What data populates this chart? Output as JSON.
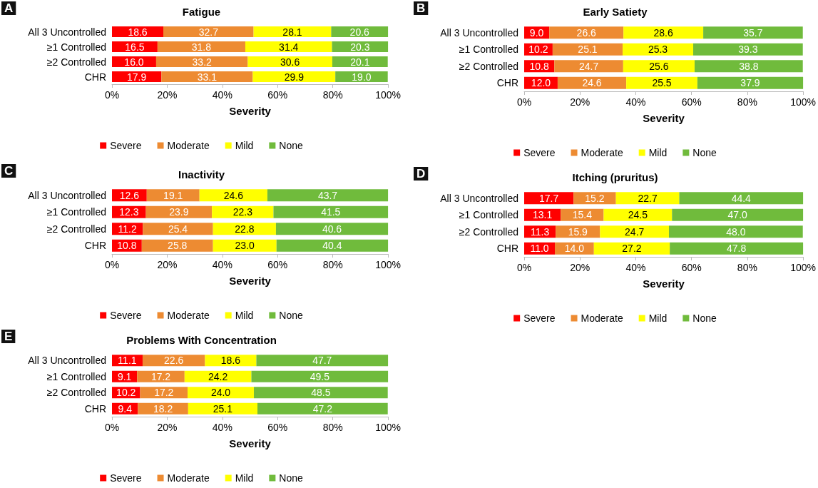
{
  "chart_data": [
    {
      "type": "bar",
      "orientation": "horizontal",
      "stacked": true,
      "title": "Fatigue",
      "annotations": [
        "A"
      ],
      "xlabel": "Severity",
      "categories": [
        "All 3 Uncontrolled",
        "≥1 Controlled",
        "≥2 Controlled",
        "CHR"
      ],
      "series": [
        {
          "name": "Severe",
          "color": "#ff0000",
          "values": [
            18.6,
            16.5,
            16.0,
            17.9
          ],
          "value_labels": [
            "18.6",
            "16.5",
            "16.0",
            "17.9"
          ]
        },
        {
          "name": "Moderate",
          "color": "#ed8b32",
          "values": [
            32.7,
            31.8,
            33.2,
            33.1
          ],
          "value_labels": [
            "32.7",
            "31.8",
            "33.2",
            "33.1"
          ]
        },
        {
          "name": "Mild",
          "color": "#ffff00",
          "values": [
            28.1,
            31.4,
            30.6,
            29.9
          ],
          "value_labels": [
            "28.1",
            "31.4",
            "30.6",
            "29.9"
          ]
        },
        {
          "name": "None",
          "color": "#70bb3c",
          "values": [
            20.6,
            20.3,
            20.1,
            19.0
          ],
          "value_labels": [
            "20.6",
            "20.3",
            "20.1",
            "19.0"
          ]
        }
      ],
      "xlim": [
        0,
        100
      ],
      "xticks": [
        {
          "value": 0,
          "label": "0%"
        },
        {
          "value": 20,
          "label": "20%"
        },
        {
          "value": 40,
          "label": "40%"
        },
        {
          "value": 60,
          "label": "60%"
        },
        {
          "value": 80,
          "label": "80%"
        },
        {
          "value": 100,
          "label": "100%"
        }
      ],
      "legend": "bottom",
      "grid": false
    },
    {
      "type": "bar",
      "orientation": "horizontal",
      "stacked": true,
      "title": "Early Satiety",
      "annotations": [
        "B"
      ],
      "xlabel": "Severity",
      "categories": [
        "All 3 Uncontrolled",
        "≥1 Controlled",
        "≥2 Controlled",
        "CHR"
      ],
      "series": [
        {
          "name": "Severe",
          "color": "#ff0000",
          "values": [
            9.0,
            10.2,
            10.8,
            12.0
          ],
          "value_labels": [
            "9.0",
            "10.2",
            "10.8",
            "12.0"
          ]
        },
        {
          "name": "Moderate",
          "color": "#ed8b32",
          "values": [
            26.6,
            25.1,
            24.7,
            24.6
          ],
          "value_labels": [
            "26.6",
            "25.1",
            "24.7",
            "24.6"
          ]
        },
        {
          "name": "Mild",
          "color": "#ffff00",
          "values": [
            28.6,
            25.3,
            25.6,
            25.5
          ],
          "value_labels": [
            "28.6",
            "25.3",
            "25.6",
            "25.5"
          ]
        },
        {
          "name": "None",
          "color": "#70bb3c",
          "values": [
            35.7,
            39.3,
            38.8,
            37.9
          ],
          "value_labels": [
            "35.7",
            "39.3",
            "38.8",
            "37.9"
          ]
        }
      ],
      "xlim": [
        0,
        100
      ],
      "xticks": [
        {
          "value": 0,
          "label": "0%"
        },
        {
          "value": 20,
          "label": "20%"
        },
        {
          "value": 40,
          "label": "40%"
        },
        {
          "value": 60,
          "label": "60%"
        },
        {
          "value": 80,
          "label": "80%"
        },
        {
          "value": 100,
          "label": "100%"
        }
      ],
      "legend": "bottom",
      "grid": false
    },
    {
      "type": "bar",
      "orientation": "horizontal",
      "stacked": true,
      "title": "Inactivity",
      "annotations": [
        "C"
      ],
      "xlabel": "Severity",
      "categories": [
        "All 3 Uncontrolled",
        "≥1 Controlled",
        "≥2 Controlled",
        "CHR"
      ],
      "series": [
        {
          "name": "Severe",
          "color": "#ff0000",
          "values": [
            12.6,
            12.3,
            11.2,
            10.8
          ],
          "value_labels": [
            "12.6",
            "12.3",
            "11.2",
            "10.8"
          ]
        },
        {
          "name": "Moderate",
          "color": "#ed8b32",
          "values": [
            19.1,
            23.9,
            25.4,
            25.8
          ],
          "value_labels": [
            "19.1",
            "23.9",
            "25.4",
            "25.8"
          ]
        },
        {
          "name": "Mild",
          "color": "#ffff00",
          "values": [
            24.6,
            22.3,
            22.8,
            23.0
          ],
          "value_labels": [
            "24.6",
            "22.3",
            "22.8",
            "23.0"
          ]
        },
        {
          "name": "None",
          "color": "#70bb3c",
          "values": [
            43.7,
            41.5,
            40.6,
            40.4
          ],
          "value_labels": [
            "43.7",
            "41.5",
            "40.6",
            "40.4"
          ]
        }
      ],
      "xlim": [
        0,
        100
      ],
      "xticks": [
        {
          "value": 0,
          "label": "0%"
        },
        {
          "value": 20,
          "label": "20%"
        },
        {
          "value": 40,
          "label": "40%"
        },
        {
          "value": 60,
          "label": "60%"
        },
        {
          "value": 80,
          "label": "80%"
        },
        {
          "value": 100,
          "label": "100%"
        }
      ],
      "legend": "bottom",
      "grid": false
    },
    {
      "type": "bar",
      "orientation": "horizontal",
      "stacked": true,
      "title": "Itching (pruritus)",
      "annotations": [
        "D"
      ],
      "xlabel": "Severity",
      "categories": [
        "All 3 Uncontrolled",
        "≥1 Controlled",
        "≥2 Controlled",
        "CHR"
      ],
      "series": [
        {
          "name": "Severe",
          "color": "#ff0000",
          "values": [
            17.7,
            13.1,
            11.3,
            11.0
          ],
          "value_labels": [
            "17.7",
            "13.1",
            "11.3",
            "11.0"
          ]
        },
        {
          "name": "Moderate",
          "color": "#ed8b32",
          "values": [
            15.2,
            15.4,
            15.9,
            14.0
          ],
          "value_labels": [
            "15.2",
            "15.4",
            "15.9",
            "14.0"
          ]
        },
        {
          "name": "Mild",
          "color": "#ffff00",
          "values": [
            22.7,
            24.5,
            24.7,
            27.2
          ],
          "value_labels": [
            "22.7",
            "24.5",
            "24.7",
            "27.2"
          ]
        },
        {
          "name": "None",
          "color": "#70bb3c",
          "values": [
            44.4,
            47.0,
            48.0,
            47.8
          ],
          "value_labels": [
            "44.4",
            "47.0",
            "48.0",
            "47.8"
          ]
        }
      ],
      "xlim": [
        0,
        100
      ],
      "xticks": [
        {
          "value": 0,
          "label": "0%"
        },
        {
          "value": 20,
          "label": "20%"
        },
        {
          "value": 40,
          "label": "40%"
        },
        {
          "value": 60,
          "label": "60%"
        },
        {
          "value": 80,
          "label": "80%"
        },
        {
          "value": 100,
          "label": "100%"
        }
      ],
      "legend": "bottom",
      "grid": false
    },
    {
      "type": "bar",
      "orientation": "horizontal",
      "stacked": true,
      "title": "Problems With Concentration",
      "annotations": [
        "E"
      ],
      "xlabel": "Severity",
      "categories": [
        "All 3 Uncontrolled",
        "≥1 Controlled",
        "≥2 Controlled",
        "CHR"
      ],
      "series": [
        {
          "name": "Severe",
          "color": "#ff0000",
          "values": [
            11.1,
            9.1,
            10.2,
            9.4
          ],
          "value_labels": [
            "11.1",
            "9.1",
            "10.2",
            "9.4"
          ]
        },
        {
          "name": "Moderate",
          "color": "#ed8b32",
          "values": [
            22.6,
            17.2,
            17.2,
            18.2
          ],
          "value_labels": [
            "22.6",
            "17.2",
            "17.2",
            "18.2"
          ]
        },
        {
          "name": "Mild",
          "color": "#ffff00",
          "values": [
            18.6,
            24.2,
            24.0,
            25.1
          ],
          "value_labels": [
            "18.6",
            "24.2",
            "24.0",
            "25.1"
          ]
        },
        {
          "name": "None",
          "color": "#70bb3c",
          "values": [
            47.7,
            49.5,
            48.5,
            47.2
          ],
          "value_labels": [
            "47.7",
            "49.5",
            "48.5",
            "47.2"
          ]
        }
      ],
      "xlim": [
        0,
        100
      ],
      "xticks": [
        {
          "value": 0,
          "label": "0%"
        },
        {
          "value": 20,
          "label": "20%"
        },
        {
          "value": 40,
          "label": "40%"
        },
        {
          "value": 60,
          "label": "60%"
        },
        {
          "value": 80,
          "label": "80%"
        },
        {
          "value": 100,
          "label": "100%"
        }
      ],
      "legend": "bottom",
      "grid": false
    }
  ]
}
